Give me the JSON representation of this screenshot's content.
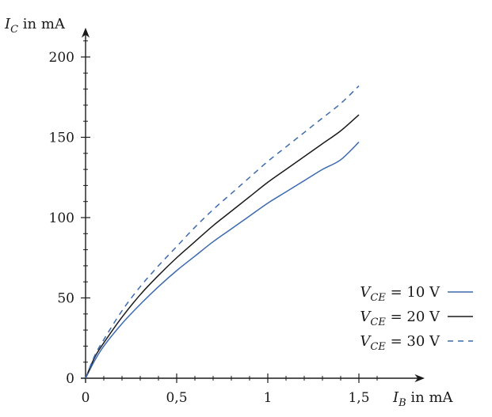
{
  "chart_data": {
    "type": "line",
    "title": "",
    "xlabel": {
      "symbol": "I",
      "sub": "B",
      "unit": " in mA"
    },
    "ylabel": {
      "symbol": "I",
      "sub": "C",
      "unit": " in mA"
    },
    "xlim": [
      0,
      1.85
    ],
    "ylim": [
      0,
      215
    ],
    "x_ticks": [
      {
        "value": 0,
        "label": "0"
      },
      {
        "value": 0.5,
        "label": "0,5"
      },
      {
        "value": 1,
        "label": "1"
      },
      {
        "value": 1.5,
        "label": "1,5"
      }
    ],
    "y_ticks": [
      {
        "value": 0,
        "label": "0"
      },
      {
        "value": 50,
        "label": "50"
      },
      {
        "value": 100,
        "label": "100"
      },
      {
        "value": 150,
        "label": "150"
      },
      {
        "value": 200,
        "label": "200"
      }
    ],
    "x_minor_step": 0.1,
    "y_minor_step": 10,
    "grid": false,
    "legend_position": "bottom-right",
    "series": [
      {
        "name": {
          "symbol": "V",
          "sub": "CE",
          "rest": " = 10 V"
        },
        "color": "#3b6aae",
        "dash": "solid",
        "x": [
          0,
          0.05,
          0.1,
          0.2,
          0.3,
          0.4,
          0.5,
          0.6,
          0.7,
          0.8,
          0.9,
          1.0,
          1.1,
          1.2,
          1.3,
          1.4,
          1.5
        ],
        "y": [
          0,
          11,
          20,
          34,
          46,
          57,
          67,
          76,
          85,
          93,
          101,
          109,
          116,
          123,
          130,
          136,
          147
        ]
      },
      {
        "name": {
          "symbol": "V",
          "sub": "CE",
          "rest": " = 20 V"
        },
        "color": "#1a1a1a",
        "dash": "solid",
        "x": [
          0,
          0.05,
          0.1,
          0.2,
          0.3,
          0.4,
          0.5,
          0.6,
          0.7,
          0.8,
          0.9,
          1.0,
          1.1,
          1.2,
          1.3,
          1.4,
          1.5
        ],
        "y": [
          0,
          13,
          22,
          38,
          52,
          64,
          75,
          85,
          95,
          104,
          113,
          122,
          130,
          138,
          146,
          154,
          164
        ]
      },
      {
        "name": {
          "symbol": "V",
          "sub": "CE",
          "rest": " = 30 V"
        },
        "color": "#3b6aae",
        "dash": "dashed",
        "x": [
          0,
          0.05,
          0.1,
          0.2,
          0.3,
          0.4,
          0.5,
          0.6,
          0.7,
          0.8,
          0.9,
          1.0,
          1.1,
          1.2,
          1.3,
          1.4,
          1.5
        ],
        "y": [
          0,
          14,
          24,
          42,
          57,
          70,
          82,
          94,
          105,
          115,
          125,
          135,
          144,
          153,
          162,
          171,
          182
        ]
      }
    ]
  }
}
